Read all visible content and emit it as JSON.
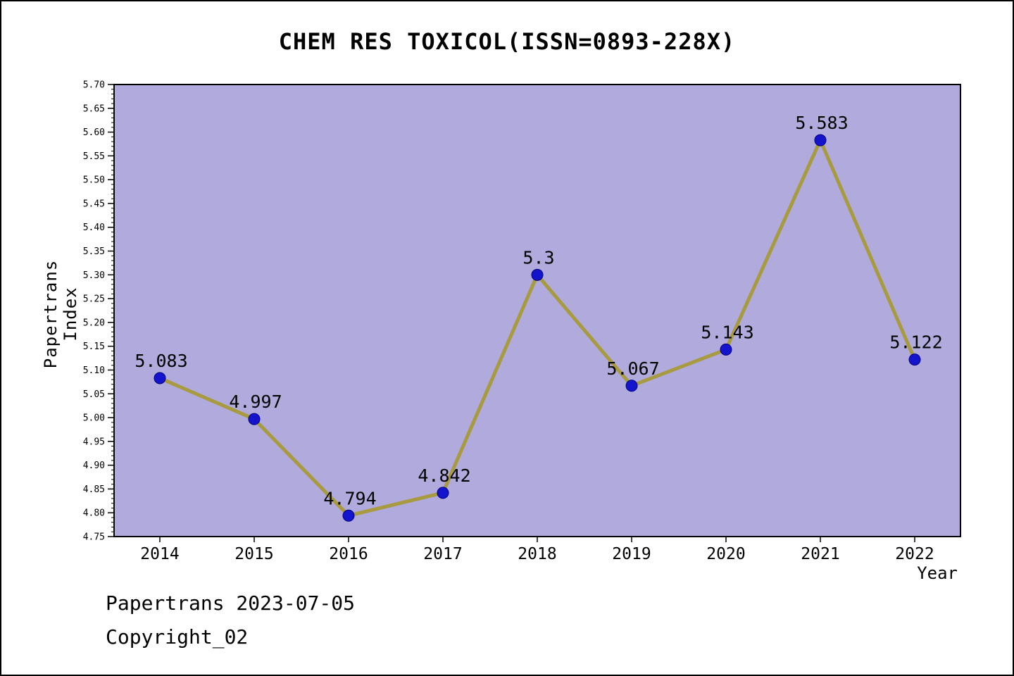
{
  "chart_data": {
    "type": "line",
    "title": "CHEM RES TOXICOL(ISSN=0893-228X)",
    "xlabel": "Year",
    "ylabel": "Papertrans Index",
    "x": [
      2014,
      2015,
      2016,
      2017,
      2018,
      2019,
      2020,
      2021,
      2022
    ],
    "series": [
      {
        "name": "Papertrans Index",
        "values": [
          5.083,
          4.997,
          4.794,
          4.842,
          5.3,
          5.067,
          5.143,
          5.583,
          5.122
        ],
        "point_labels": [
          "5.083",
          "4.997",
          "4.794",
          "4.842",
          "5.3",
          "5.067",
          "5.143",
          "5.583",
          "5.122"
        ]
      }
    ],
    "ylim": [
      4.75,
      5.7
    ],
    "y_major_step": 0.05,
    "y_minor_step": 0.01,
    "grid": false,
    "legend_position": "none",
    "colors": {
      "plot_background": "#b1aadd",
      "line": "#a89a3e",
      "marker": "#1414cc",
      "marker_edge": "#000080",
      "axis": "#000000",
      "text": "#000000"
    }
  },
  "footer": {
    "line1": "Papertrans 2023-07-05",
    "line2": "Copyright_02"
  }
}
